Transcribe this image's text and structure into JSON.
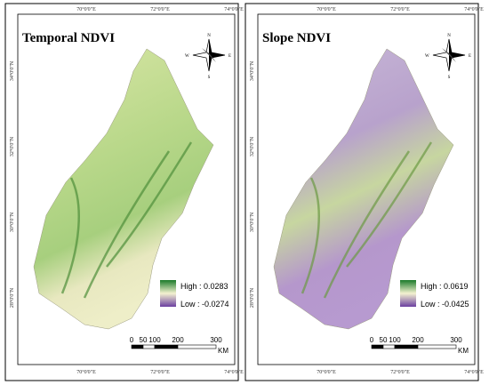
{
  "panels": [
    {
      "title": "Temporal NDVI",
      "legend": {
        "high": "High : 0.0283",
        "low": "Low : -0.0274"
      }
    },
    {
      "title": "Slope NDVI",
      "legend": {
        "high": "High : 0.0619",
        "low": "Low : -0.0425"
      }
    }
  ],
  "longitude_labels": [
    "70°0'0\"E",
    "72°0'0\"E",
    "74°0'0\"E"
  ],
  "latitude_labels": [
    "34°0'0\"N",
    "32°0'0\"N",
    "30°0'0\"N",
    "28°0'0\"N"
  ],
  "compass": {
    "n": "N",
    "e": "E",
    "s": "S",
    "w": "W"
  },
  "scale_bar": {
    "ticks": [
      "0",
      "50",
      "100",
      "200",
      "300"
    ],
    "unit": "KM"
  }
}
